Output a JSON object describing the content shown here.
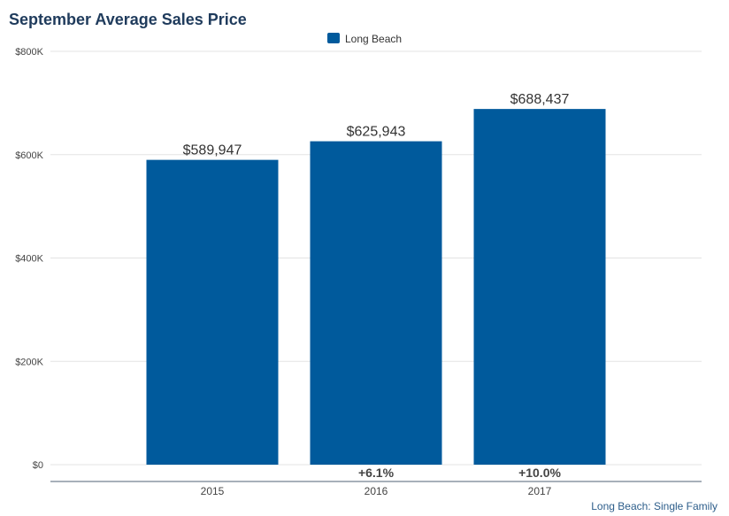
{
  "chart_data": {
    "type": "bar",
    "title": "September Average Sales Price",
    "categories": [
      "2015",
      "2016",
      "2017"
    ],
    "series": [
      {
        "name": "Long Beach",
        "values": [
          589947,
          625943,
          688437
        ],
        "color": "#005a9c"
      }
    ],
    "value_labels": [
      "$589,947",
      "$625,943",
      "$688,437"
    ],
    "change_labels": [
      "",
      "+6.1%",
      "+10.0%"
    ],
    "yticks": [
      0,
      200000,
      400000,
      600000,
      800000
    ],
    "ytick_labels": [
      "$0",
      "$200K",
      "$400K",
      "$600K",
      "$800K"
    ],
    "ylim": [
      0,
      800000
    ],
    "grid": true,
    "legend_position": "top-center",
    "footer": "Long Beach: Single Family"
  }
}
